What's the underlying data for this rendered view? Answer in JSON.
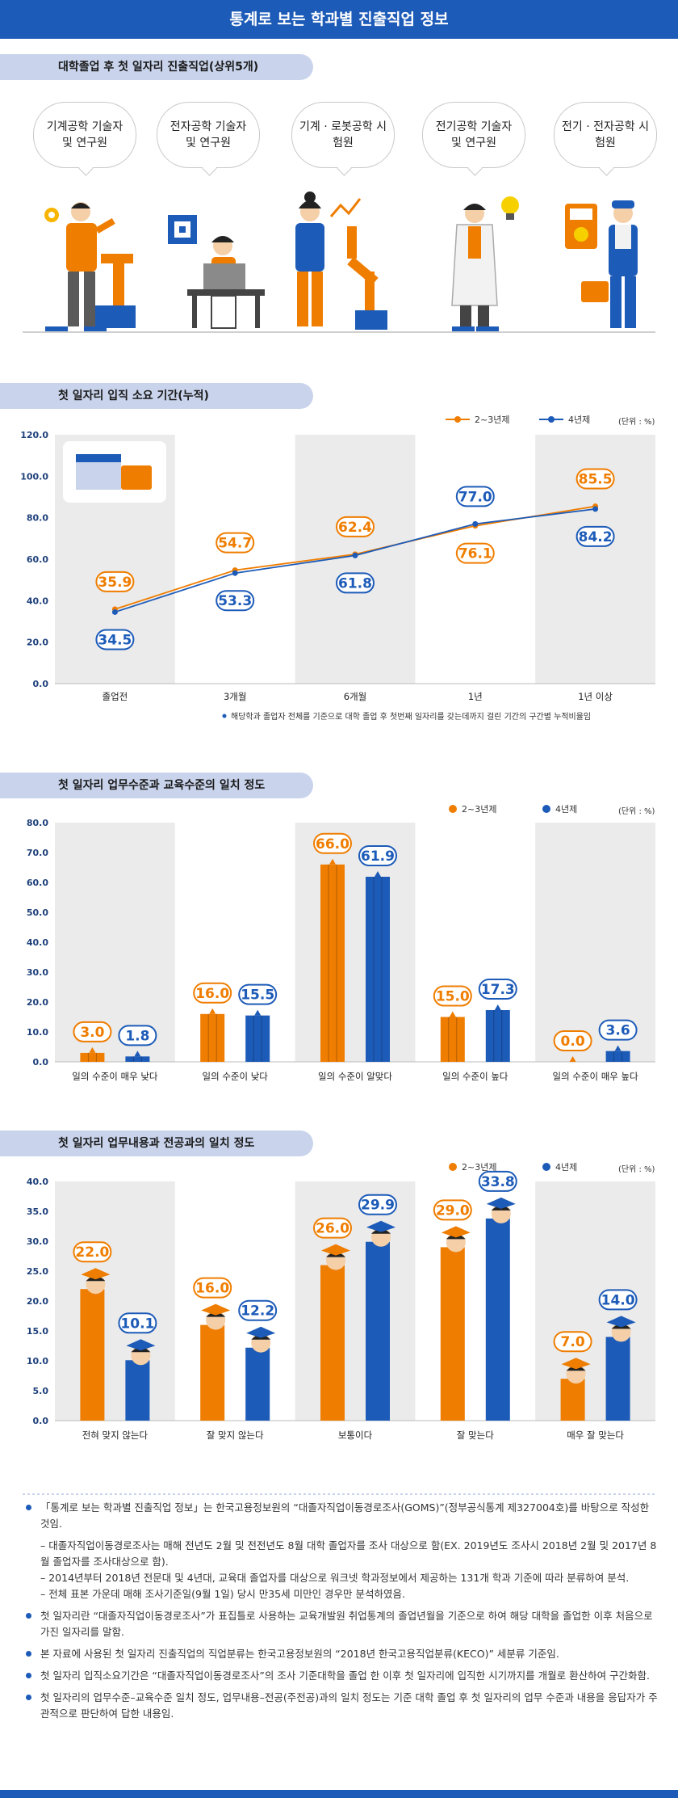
{
  "page": {
    "title": "통계로 보는 학과별 진출직업 정보"
  },
  "section1": {
    "heading": "대학졸업 후 첫 일자리 진출직업(상위5개)",
    "jobs": [
      "기계공학 기술자 및 연구원",
      "전자공학 기술자 및 연구원",
      "기계 · 로봇공학 시험원",
      "전기공학 기술자 및 연구원",
      "전기 · 전자공학 시험원"
    ]
  },
  "legend": {
    "series1": "2~3년제",
    "series2": "4년제",
    "unit": "(단위 : %)"
  },
  "colors": {
    "orange": "#ef7d00",
    "blue": "#1d5bb8",
    "bg_band": "#ebebeb",
    "pill": "#c9d4ec"
  },
  "section2": {
    "heading": "첫 일자리 입직 소요 기간(누적)"
  },
  "section3": {
    "heading": "첫 일자리 업무수준과 교육수준의 일치 정도"
  },
  "section4": {
    "heading": "첫 일자리 업무내용과 전공과의 일치 정도"
  },
  "chart_data": [
    {
      "type": "line",
      "title": "첫 일자리 입직 소요 기간(누적)",
      "categories": [
        "졸업전",
        "3개월",
        "6개월",
        "1년",
        "1년 이상"
      ],
      "series": [
        {
          "name": "2~3년제",
          "values": [
            35.9,
            54.7,
            62.4,
            76.1,
            85.5
          ]
        },
        {
          "name": "4년제",
          "values": [
            34.5,
            53.3,
            61.8,
            77.0,
            84.2
          ]
        }
      ],
      "ylim": [
        0,
        120
      ],
      "yticks": [
        "0.0",
        "20.0",
        "40.0",
        "60.0",
        "80.0",
        "100.0",
        "120.0"
      ],
      "note": "해당학과 졸업자 전체를 기준으로 대학 졸업 후 첫번째 일자리를 갖는데까지 걸린 기간의 구간별 누적비율임"
    },
    {
      "type": "bar",
      "title": "첫 일자리 업무수준과 교육수준의 일치 정도",
      "categories": [
        "일의 수준이 매우 낮다",
        "일의 수준이 낮다",
        "일의 수준이 알맞다",
        "일의 수준이 높다",
        "일의 수준이 매우 높다"
      ],
      "series": [
        {
          "name": "2~3년제",
          "values": [
            3.0,
            16.0,
            66.0,
            15.0,
            0.0
          ]
        },
        {
          "name": "4년제",
          "values": [
            1.8,
            15.5,
            61.9,
            17.3,
            3.6
          ]
        }
      ],
      "ylim": [
        0,
        80
      ],
      "yticks": [
        "0.0",
        "10.0",
        "20.0",
        "30.0",
        "40.0",
        "50.0",
        "60.0",
        "70.0",
        "80.0"
      ]
    },
    {
      "type": "bar",
      "title": "첫 일자리 업무내용과 전공과의 일치 정도",
      "categories": [
        "전혀 맞지 않는다",
        "잘 맞지 않는다",
        "보통이다",
        "잘 맞는다",
        "매우 잘 맞는다"
      ],
      "series": [
        {
          "name": "2~3년제",
          "values": [
            22.0,
            16.0,
            26.0,
            29.0,
            7.0
          ]
        },
        {
          "name": "4년제",
          "values": [
            10.1,
            12.2,
            29.9,
            33.8,
            14.0
          ]
        }
      ],
      "ylim": [
        0,
        40
      ],
      "yticks": [
        "0.0",
        "5.0",
        "10.0",
        "15.0",
        "20.0",
        "25.0",
        "30.0",
        "35.0",
        "40.0"
      ]
    }
  ],
  "notes": {
    "n1": "「통계로 보는 학과별 진출직업 정보」는 한국고용정보원의 “대졸자직업이동경로조사(GOMS)”(정부공식통계 제327004호)를 바탕으로 작성한 것임.",
    "n1a": "– 대졸자직업이동경로조사는 매해 전년도 2월 및 전전년도 8월 대학 졸업자를 조사 대상으로 함(EX. 2019년도 조사시 2018년 2월 및 2017년 8월 졸업자를 조사대상으로 함).",
    "n1b": "– 2014년부터 2018년 전문대 및 4년대, 교육대 졸업자를 대상으로 워크넷 학과정보에서 제공하는 131개 학과 기준에 따라 분류하여 분석.",
    "n1c": "– 전체 표본 가운데 매해 조사기준일(9월 1일) 당시 만35세 미만인 경우만 분석하였음.",
    "n2": "첫 일자리란 “대졸자직업이동경로조사”가 표집틀로 사용하는 교육개발원 취업통계의 졸업년월을 기준으로 하여 해당 대학을 졸업한 이후 처음으로 가진 일자리를 말함.",
    "n3": "본 자료에 사용된 첫 일자리 진출직업의 직업분류는 한국고용정보원의 “2018년 한국고용직업분류(KECO)” 세분류 기준임.",
    "n4": "첫 일자리 입직소요기간은 “대졸자직업이동경로조사”의 조사 기준대학을 졸업 한 이후 첫 일자리에 입직한 시기까지를 개월로 환산하여 구간화함.",
    "n5": "첫 일자리의 업무수준–교육수준 일치 정도, 업무내용–전공(주전공)과의 일치 정도는 기준 대학 졸업 후 첫 일자리의 업무 수준과 내용을 응답자가 주관적으로 판단하여 답한 내용임."
  }
}
